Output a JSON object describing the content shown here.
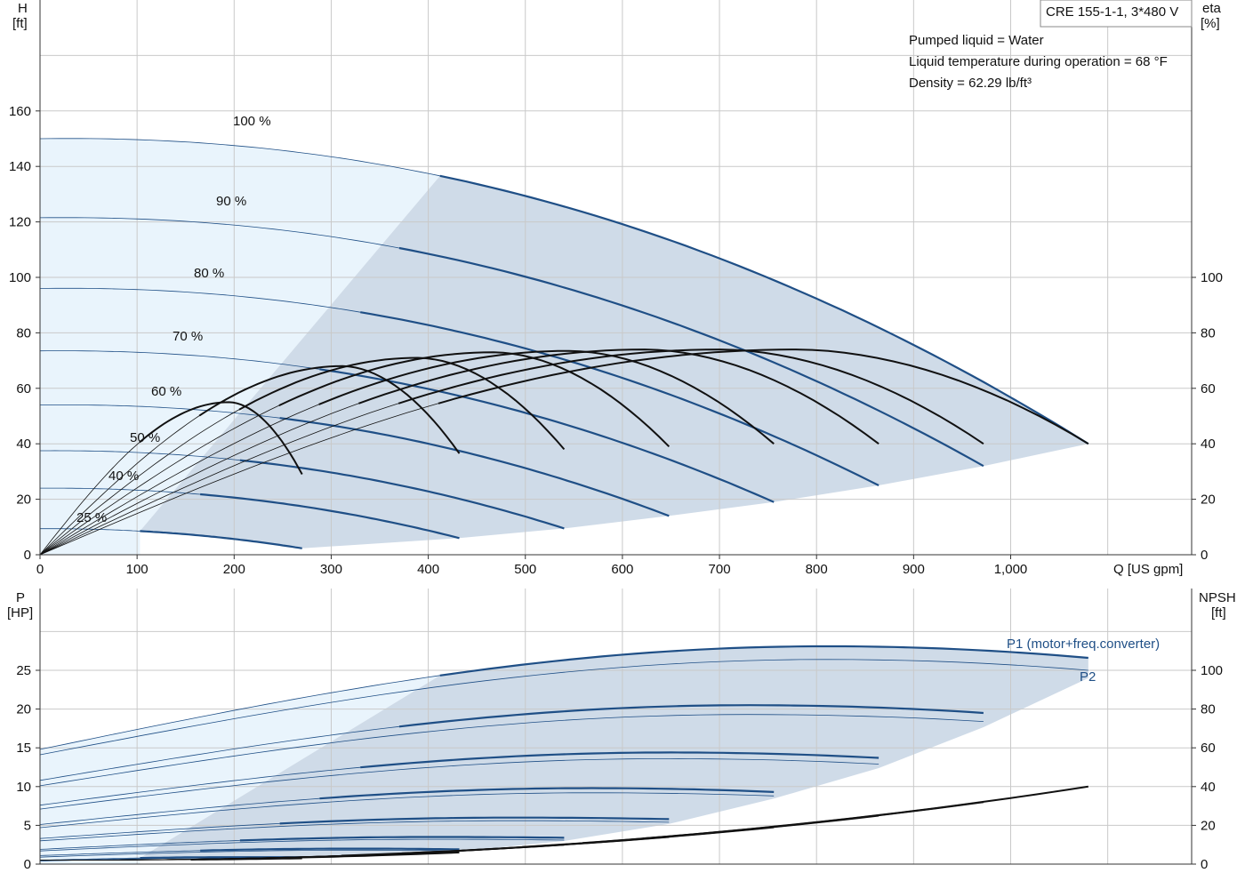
{
  "info": {
    "model": "CRE 155-1-1, 3*480 V",
    "lines": [
      "Pumped liquid = Water",
      "Liquid temperature during operation = 68 °F",
      "Density = 62.29 lb/ft³"
    ]
  },
  "colors": {
    "region_light": "#e9f4fc",
    "region_dark": "#cfdbe8",
    "curve_blue": "#1f4f86",
    "curve_black": "#111111",
    "grid": "#c9c9c9"
  },
  "chart_data": [
    {
      "type": "line",
      "title": "",
      "xlabel": "Q [US gpm]",
      "xlim": [
        0,
        1190
      ],
      "x_ticks": [
        "0",
        "100",
        "200",
        "300",
        "400",
        "500",
        "600",
        "700",
        "800",
        "900",
        "1,000"
      ],
      "y_left_label_line1": "H",
      "y_left_label_line2": "[ft]",
      "y_left_lim": [
        0,
        200
      ],
      "y_left_ticks": [
        "0",
        "20",
        "40",
        "60",
        "80",
        "100",
        "120",
        "140",
        "160"
      ],
      "y_right_label_line1": "eta",
      "y_right_label_line2": "[%]",
      "y_right_lim": [
        0,
        200
      ],
      "y_right_ticks": [
        "0",
        "20",
        "40",
        "60",
        "80",
        "100"
      ],
      "speed_labels": [
        "25 %",
        "40 %",
        "50 %",
        "60 %",
        "70 %",
        "80 %",
        "90 %",
        "100 %"
      ],
      "head_curves": [
        {
          "speed": "100 %",
          "h0": 150,
          "peak": 152,
          "q_peak": 100,
          "q_max": 1080,
          "h_end": 40,
          "q_op": 412
        },
        {
          "speed": "90 %",
          "h0": 121.5,
          "peak": 123,
          "q_peak": 90,
          "q_max": 972,
          "h_end": 32,
          "q_op": 370
        },
        {
          "speed": "80 %",
          "h0": 96,
          "peak": 97.5,
          "q_peak": 80,
          "q_max": 864,
          "h_end": 25,
          "q_op": 330
        },
        {
          "speed": "70 %",
          "h0": 73.5,
          "peak": 74.5,
          "q_peak": 70,
          "q_max": 756,
          "h_end": 19,
          "q_op": 288
        },
        {
          "speed": "60 %",
          "h0": 54,
          "peak": 55,
          "q_peak": 60,
          "q_max": 648,
          "h_end": 14,
          "q_op": 247
        },
        {
          "speed": "50 %",
          "h0": 37.5,
          "peak": 38,
          "q_peak": 50,
          "q_max": 540,
          "h_end": 9.5,
          "q_op": 206
        },
        {
          "speed": "40 %",
          "h0": 24,
          "peak": 24.3,
          "q_peak": 40,
          "q_max": 432,
          "h_end": 6,
          "q_op": 165
        },
        {
          "speed": "25 %",
          "h0": 9.4,
          "peak": 9.5,
          "q_peak": 25,
          "q_max": 270,
          "h_end": 2.3,
          "q_op": 103
        }
      ],
      "eta_curves": [
        {
          "q_end": 1080,
          "eta_end": 40,
          "peak": 74
        },
        {
          "q_end": 972,
          "eta_end": 40,
          "peak": 74
        },
        {
          "q_end": 864,
          "eta_end": 40,
          "peak": 74
        },
        {
          "q_end": 756,
          "eta_end": 40,
          "peak": 73.5
        },
        {
          "q_end": 648,
          "eta_end": 39,
          "peak": 73
        },
        {
          "q_end": 540,
          "eta_end": 38,
          "peak": 71
        },
        {
          "q_end": 432,
          "eta_end": 36.5,
          "peak": 68
        },
        {
          "q_end": 270,
          "eta_end": 29,
          "peak": 55
        }
      ]
    },
    {
      "type": "line",
      "title": "",
      "x_ticks": [],
      "y_left_label_line1": "P",
      "y_left_label_line2": "[HP]",
      "y_left_lim": [
        0,
        30
      ],
      "y_left_ticks": [
        "0",
        "5",
        "10",
        "15",
        "20",
        "25"
      ],
      "y_right_label_line1": "NPSH",
      "y_right_label_line2": "[ft]",
      "y_right_lim": [
        0,
        120
      ],
      "y_right_ticks": [
        "0",
        "20",
        "40",
        "60",
        "80",
        "100"
      ],
      "series_labels": [
        "P1 (motor+freq.converter)",
        "P2"
      ],
      "power_curves": [
        {
          "q_max": 1080,
          "p1_0": 14.8,
          "p1_max": 28.1,
          "p2_0": 14.1,
          "p2_max": 26.4,
          "p1_end": 26.6,
          "p2_end": 25.0,
          "q_op": 412
        },
        {
          "q_max": 972,
          "p1_0": 10.8,
          "p1_max": 20.5,
          "p2_0": 10.1,
          "p2_max": 19.3,
          "p1_end": 19.5,
          "p2_end": 18.4,
          "q_op": 370
        },
        {
          "q_max": 864,
          "p1_0": 7.6,
          "p1_max": 14.4,
          "p2_0": 7.1,
          "p2_max": 13.6,
          "p1_end": 13.7,
          "p2_end": 12.9,
          "q_op": 330
        },
        {
          "q_max": 756,
          "p1_0": 5.1,
          "p1_max": 9.8,
          "p2_0": 4.7,
          "p2_max": 9.2,
          "p1_end": 9.3,
          "p2_end": 8.8,
          "q_op": 288
        },
        {
          "q_max": 648,
          "p1_0": 3.3,
          "p1_max": 6.0,
          "p2_0": 3.0,
          "p2_max": 5.6,
          "p1_end": 5.8,
          "p2_end": 5.4,
          "q_op": 247
        },
        {
          "q_max": 540,
          "p1_0": 1.9,
          "p1_max": 3.5,
          "p2_0": 1.7,
          "p2_max": 3.2,
          "p1_end": 3.4,
          "p2_end": 3.1,
          "q_op": 206
        },
        {
          "q_max": 432,
          "p1_0": 1.1,
          "p1_max": 2.0,
          "p2_0": 0.9,
          "p2_max": 1.8,
          "p1_end": 1.9,
          "p2_end": 1.7,
          "q_op": 165
        },
        {
          "q_max": 270,
          "p1_0": 0.5,
          "p1_max": 0.9,
          "p2_0": 0.4,
          "p2_max": 0.8,
          "p1_end": 0.9,
          "p2_end": 0.8,
          "q_op": 103
        }
      ],
      "npsh_curves": [
        {
          "q_max": 1080,
          "npsh_end": 40
        },
        {
          "q_max": 972,
          "npsh_end": 32
        },
        {
          "q_max": 864,
          "npsh_end": 25
        },
        {
          "q_max": 756,
          "npsh_end": 19
        },
        {
          "q_max": 648,
          "npsh_end": 14
        },
        {
          "q_max": 540,
          "npsh_end": 10
        },
        {
          "q_max": 432,
          "npsh_end": 6
        },
        {
          "q_max": 270,
          "npsh_end": 3
        }
      ]
    }
  ]
}
